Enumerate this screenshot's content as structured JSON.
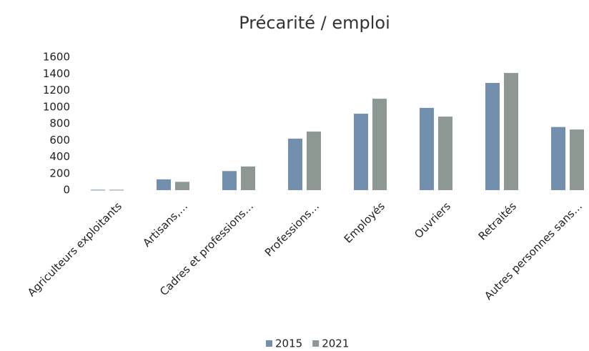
{
  "chart_data": {
    "type": "bar",
    "title": "Précarité / emploi",
    "categories": [
      "Agriculteurs exploitants",
      "Artisans,…",
      "Cadres et professions…",
      "Professions…",
      "Employés",
      "Ouvriers",
      "Retraités",
      "Autres personnes sans…"
    ],
    "series": [
      {
        "name": "2015",
        "color": "#7290ad",
        "values": [
          5,
          130,
          230,
          620,
          920,
          990,
          1290,
          760
        ]
      },
      {
        "name": "2021",
        "color": "#8d9893",
        "values": [
          5,
          100,
          285,
          705,
          1100,
          885,
          1410,
          730
        ]
      }
    ],
    "ylim": [
      0,
      1600
    ],
    "yticks": [
      0,
      200,
      400,
      600,
      800,
      1000,
      1200,
      1400,
      1600
    ],
    "grid": false,
    "legend": "bottom"
  }
}
